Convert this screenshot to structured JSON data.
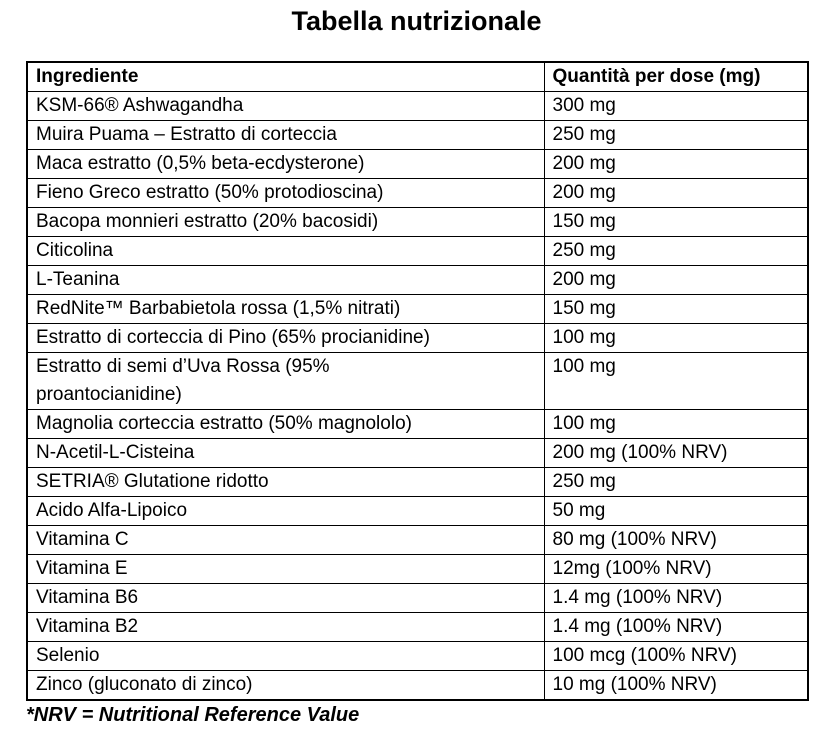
{
  "title": "Tabella nutrizionale",
  "table": {
    "headers": [
      "Ingrediente",
      "Quantità per dose (mg)"
    ],
    "rows": [
      [
        "KSM-66® Ashwagandha",
        "300 mg"
      ],
      [
        "Muira Puama – Estratto di corteccia",
        "250 mg"
      ],
      [
        "Maca estratto (0,5% beta-ecdysterone)",
        "200 mg"
      ],
      [
        "Fieno Greco estratto (50% protodioscina)",
        "200 mg"
      ],
      [
        "Bacopa monnieri estratto (20% bacosidi)",
        "150 mg"
      ],
      [
        "Citicolina",
        "250 mg"
      ],
      [
        "L-Teanina",
        "200 mg"
      ],
      [
        "RedNite™ Barbabietola rossa (1,5% nitrati)",
        "150 mg"
      ],
      [
        "Estratto di corteccia di Pino (65% procianidine)",
        "100 mg"
      ],
      [
        "Estratto di semi d’Uva Rossa (95%\nproantocianidine)",
        "100 mg"
      ],
      [
        "Magnolia corteccia estratto (50% magnololo)",
        "100 mg"
      ],
      [
        "N-Acetil-L-Cisteina",
        "200 mg (100% NRV)"
      ],
      [
        "SETRIA® Glutatione ridotto",
        "250 mg"
      ],
      [
        "Acido Alfa-Lipoico",
        "50 mg"
      ],
      [
        "Vitamina C",
        "80 mg (100% NRV)"
      ],
      [
        "Vitamina E",
        "12mg (100% NRV)"
      ],
      [
        "Vitamina B6",
        "1.4 mg (100% NRV)"
      ],
      [
        "Vitamina B2",
        "1.4 mg (100% NRV)"
      ],
      [
        "Selenio",
        "100 mcg (100% NRV)"
      ],
      [
        "Zinco (gluconato di zinco)",
        "10 mg (100% NRV)"
      ]
    ]
  },
  "footnote": "*NRV = Nutritional Reference Value",
  "colors": {
    "text": "#000000",
    "border": "#000000",
    "background": "#ffffff"
  }
}
